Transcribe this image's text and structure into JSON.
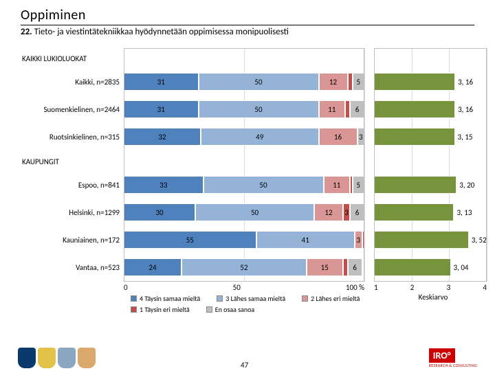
{
  "header": {
    "title": "Oppiminen",
    "subtitle_bold": "22.",
    "subtitle_rest": " Tieto- ja viestintätekniikkaa hyödynnetään oppimisessa monipuolisesti"
  },
  "chart": {
    "colors": {
      "s4": "#4f81bd",
      "s3": "#95b3d7",
      "s2": "#d99694",
      "s1": "#c0504d",
      "s0": "#bfbfbf",
      "mean": "#77933c"
    },
    "x_ticks": [
      "0",
      "50",
      "100 %"
    ],
    "mean_ticks": [
      "1",
      "2",
      "3",
      "4"
    ],
    "mean_axis_min": 1,
    "mean_axis_max": 4,
    "sections": [
      {
        "label": "KAIKKI LUKIOLUOKAT"
      },
      {
        "rows": [
          {
            "label": "Kaikki, n=2835",
            "segs": [
              31,
              50,
              12,
              2,
              5
            ],
            "mean": "3, 16",
            "mean_v": 3.16
          },
          {
            "label": "Suomenkielinen, n=2464",
            "segs": [
              31,
              50,
              11,
              2,
              6
            ],
            "mean": "3, 16",
            "mean_v": 3.16
          },
          {
            "label": "Ruotsinkielinen, n=315",
            "segs": [
              32,
              49,
              16,
              0,
              3
            ],
            "mean": "3, 15",
            "mean_v": 3.15
          }
        ]
      },
      {
        "label": "KAUPUNGIT"
      },
      {
        "rows": [
          {
            "label": "Espoo, n=841",
            "segs": [
              33,
              50,
              11,
              1,
              5
            ],
            "mean": "3, 20",
            "mean_v": 3.2
          },
          {
            "label": "Helsinki, n=1299",
            "segs": [
              30,
              50,
              12,
              3,
              6
            ],
            "mean": "3, 13",
            "mean_v": 3.13
          },
          {
            "label": "Kauniainen, n=172",
            "segs": [
              55,
              41,
              3,
              1,
              0
            ],
            "mean": "3, 52",
            "mean_v": 3.52
          },
          {
            "label": "Vantaa, n=523",
            "segs": [
              24,
              52,
              15,
              2,
              6
            ],
            "mean": "3, 04",
            "mean_v": 3.04
          }
        ]
      }
    ],
    "mean_label": "Keskiarvo",
    "legend": [
      {
        "c": "s4",
        "t": "4 Täysin samaa mieltä"
      },
      {
        "c": "s3",
        "t": "3 Lähes samaa mieltä"
      },
      {
        "c": "s2",
        "t": "2 Lähes eri mieltä"
      },
      {
        "c": "s1",
        "t": "1 Täysin eri mieltä"
      },
      {
        "c": "s0",
        "t": "En osaa sanoa"
      }
    ],
    "page_num": "47"
  },
  "footer": {
    "logo_colors": [
      "#0a3a6b",
      "#e3c24a",
      "#8aa6c1",
      "#d9a86a"
    ],
    "iro_text": "IRO°",
    "iro_sub": "RESEARCH & CONSULTING"
  }
}
